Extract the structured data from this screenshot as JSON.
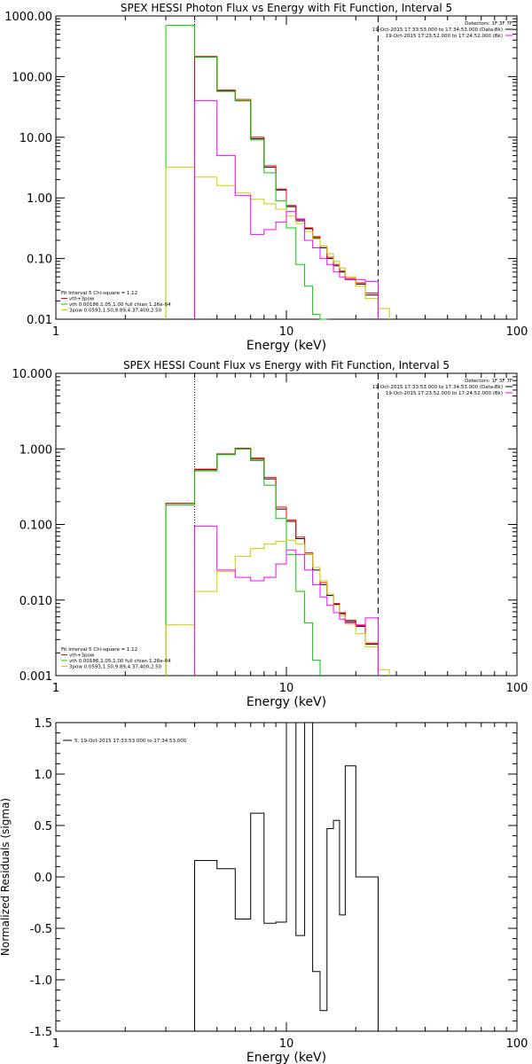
{
  "chart_data": [
    {
      "type": "line",
      "title": "SPEX HESSI Photon Flux vs Energy with Fit Function, Interval 5",
      "xlabel": "Energy  (keV)",
      "ylabel": "",
      "xscale": "log",
      "yscale": "log",
      "xlim": [
        1,
        100
      ],
      "ylim": [
        0.01,
        1000
      ],
      "xticks": [
        "1",
        "10",
        "100"
      ],
      "yticks": [
        "0.01",
        "0.10",
        "1.00",
        "10.00",
        "100.00",
        "1000.00"
      ],
      "detectors_label": "Detectors: 1F 3F 7F",
      "time_labels": [
        {
          "text": "19-Oct-2015 17:33:53.000 to 17:34:53.000 (Data-Bk)",
          "color": "#000000"
        },
        {
          "text": "19-Oct-2015 17:23:52.000 to 17:24:52.000 (Bk)",
          "color": "#ff00ff"
        }
      ],
      "fit_legend": [
        {
          "text": "Fit Interval 5   Chi-square = 1.12",
          "color": "#000000"
        },
        {
          "text": "vth+3pow",
          "color": "#ff0000"
        },
        {
          "text": "vth 0.00186,1.05,1.00  full chian 1.26e-04",
          "color": "#00cc00"
        },
        {
          "text": "3pow 0.0593,1.50,9.89,4.37,400,2.50",
          "color": "#cccc00"
        }
      ],
      "energy_edges": [
        3.0,
        4.0,
        5.0,
        6.0,
        7.0,
        8.0,
        9.0,
        10.0,
        11.0,
        12.0,
        13.0,
        14.0,
        15.0,
        16.0,
        17.0,
        18.0,
        20.0,
        22.0,
        25.0,
        28.0
      ],
      "fit_range": [
        4.0,
        25.0
      ],
      "series": [
        {
          "name": "Data-Bk",
          "color": "#000000",
          "values": [
            null,
            210,
            58,
            40,
            9.5,
            3.2,
            1.35,
            0.72,
            0.42,
            0.31,
            0.22,
            0.15,
            0.1,
            0.076,
            0.06,
            0.045,
            0.038,
            0.025,
            null
          ]
        },
        {
          "name": "vth+3pow",
          "color": "#ff0000",
          "values": [
            null,
            215,
            60,
            42,
            10,
            3.4,
            1.4,
            0.75,
            0.44,
            0.32,
            0.23,
            0.16,
            0.105,
            0.08,
            0.062,
            0.047,
            0.04,
            0.027,
            null
          ]
        },
        {
          "name": "vth",
          "color": "#00cc00",
          "values": [
            700,
            210,
            57,
            40,
            9,
            2.6,
            0.9,
            0.32,
            0.08,
            0.035,
            0.012,
            0.004,
            null,
            null,
            null,
            null,
            null,
            null,
            null
          ]
        },
        {
          "name": "3pow",
          "color": "#cccc00",
          "values": [
            3.2,
            2.2,
            1.6,
            1.2,
            0.95,
            0.8,
            0.65,
            0.5,
            0.38,
            0.28,
            0.21,
            0.16,
            0.12,
            0.09,
            0.07,
            0.05,
            0.035,
            0.022,
            0.015
          ]
        },
        {
          "name": "Bk",
          "color": "#ff00ff",
          "values": [
            null,
            40,
            5,
            1.1,
            0.25,
            0.3,
            0.4,
            0.6,
            0.45,
            0.2,
            0.15,
            0.1,
            0.08,
            0.06,
            0.05,
            0.045,
            0.045,
            0.042,
            null
          ]
        }
      ]
    },
    {
      "type": "line",
      "title": "SPEX HESSI Count Flux vs Energy with Fit Function, Interval 5",
      "xlabel": "Energy  (keV)",
      "ylabel": "",
      "xscale": "log",
      "yscale": "log",
      "xlim": [
        1,
        100
      ],
      "ylim": [
        0.001,
        10
      ],
      "xticks": [
        "1",
        "10",
        "100"
      ],
      "yticks": [
        "0.001",
        "0.010",
        "0.100",
        "1.000",
        "10.000"
      ],
      "detectors_label": "Detectors: 1F 3F 7F",
      "time_labels": [
        {
          "text": "19-Oct-2015 17:33:53.000 to 17:34:53.000 (Data-Bk)",
          "color": "#000000"
        },
        {
          "text": "19-Oct-2015 17:23:52.000 to 17:24:52.000 (Bk)",
          "color": "#ff00ff"
        }
      ],
      "fit_legend": [
        {
          "text": "Fit Interval 5   Chi-square = 1.12",
          "color": "#000000"
        },
        {
          "text": "vth+3pow",
          "color": "#ff0000"
        },
        {
          "text": "vth 0.00186,1.05,1.00  full chian 1.26e-04",
          "color": "#00cc00"
        },
        {
          "text": "3pow 0.0593,1.50,9.89,4.37,400,2.50",
          "color": "#cccc00"
        }
      ],
      "energy_edges": [
        3.0,
        4.0,
        5.0,
        6.0,
        7.0,
        8.0,
        9.0,
        10.0,
        11.0,
        12.0,
        13.0,
        14.0,
        15.0,
        16.0,
        17.0,
        18.0,
        20.0,
        22.0,
        25.0,
        28.0
      ],
      "fit_range": [
        4.0,
        25.0
      ],
      "series": [
        {
          "name": "Data-Bk",
          "color": "#000000",
          "values": [
            0.19,
            0.53,
            0.85,
            1.0,
            0.73,
            0.4,
            0.16,
            0.11,
            0.065,
            0.04,
            0.025,
            0.016,
            0.0115,
            0.0088,
            0.0066,
            0.0052,
            0.0045,
            0.0026,
            null
          ]
        },
        {
          "name": "vth+3pow",
          "color": "#ff0000",
          "values": [
            0.19,
            0.54,
            0.86,
            1.02,
            0.76,
            0.42,
            0.17,
            0.115,
            0.068,
            0.042,
            0.027,
            0.017,
            0.012,
            0.009,
            0.0068,
            0.0054,
            0.0046,
            0.0027,
            null
          ]
        },
        {
          "name": "vth",
          "color": "#00cc00",
          "values": [
            0.18,
            0.51,
            0.84,
            1.0,
            0.7,
            0.33,
            0.12,
            0.04,
            0.013,
            0.005,
            0.0016,
            null,
            null,
            null,
            null,
            null,
            null,
            null,
            null
          ]
        },
        {
          "name": "3pow",
          "color": "#cccc00",
          "values": [
            0.0047,
            0.013,
            0.024,
            0.038,
            0.048,
            0.055,
            0.06,
            0.062,
            0.055,
            0.04,
            0.027,
            0.018,
            0.012,
            0.0085,
            0.0062,
            0.0048,
            0.0036,
            0.0024,
            0.0012
          ]
        },
        {
          "name": "Bk",
          "color": "#ff00ff",
          "values": [
            null,
            0.095,
            0.025,
            0.02,
            0.018,
            0.02,
            0.03,
            0.046,
            0.04,
            0.025,
            0.016,
            0.011,
            0.0085,
            0.0068,
            0.0056,
            0.005,
            0.0047,
            0.0058,
            null
          ]
        }
      ]
    },
    {
      "type": "line",
      "title": "",
      "xlabel": "Energy  (keV)",
      "ylabel": "Normalized Residuals (sigma)",
      "xscale": "log",
      "yscale": "linear",
      "xlim": [
        1,
        100
      ],
      "ylim": [
        -1.5,
        1.5
      ],
      "xticks": [
        "1",
        "10",
        "100"
      ],
      "yticks": [
        "-1.5",
        "-1.0",
        "-0.5",
        "0.0",
        "0.5",
        "1.0",
        "1.5"
      ],
      "legend": "5, 19-Oct-2015 17:33:53.000 to 17:34:53.000",
      "energy_edges": [
        4.0,
        5.0,
        6.0,
        7.0,
        8.0,
        9.0,
        10.0,
        11.0,
        12.0,
        13.0,
        14.0,
        15.0,
        16.0,
        17.0,
        18.0,
        20.0,
        22.0,
        25.0
      ],
      "series": [
        {
          "name": "residuals",
          "color": "#000000",
          "values": [
            0.16,
            0.08,
            -0.41,
            0.62,
            -0.45,
            -0.44,
            1.5,
            -0.57,
            1.5,
            -0.92,
            -1.3,
            0.47,
            0.55,
            -0.37,
            1.08,
            0.0,
            0.0
          ]
        }
      ]
    }
  ]
}
